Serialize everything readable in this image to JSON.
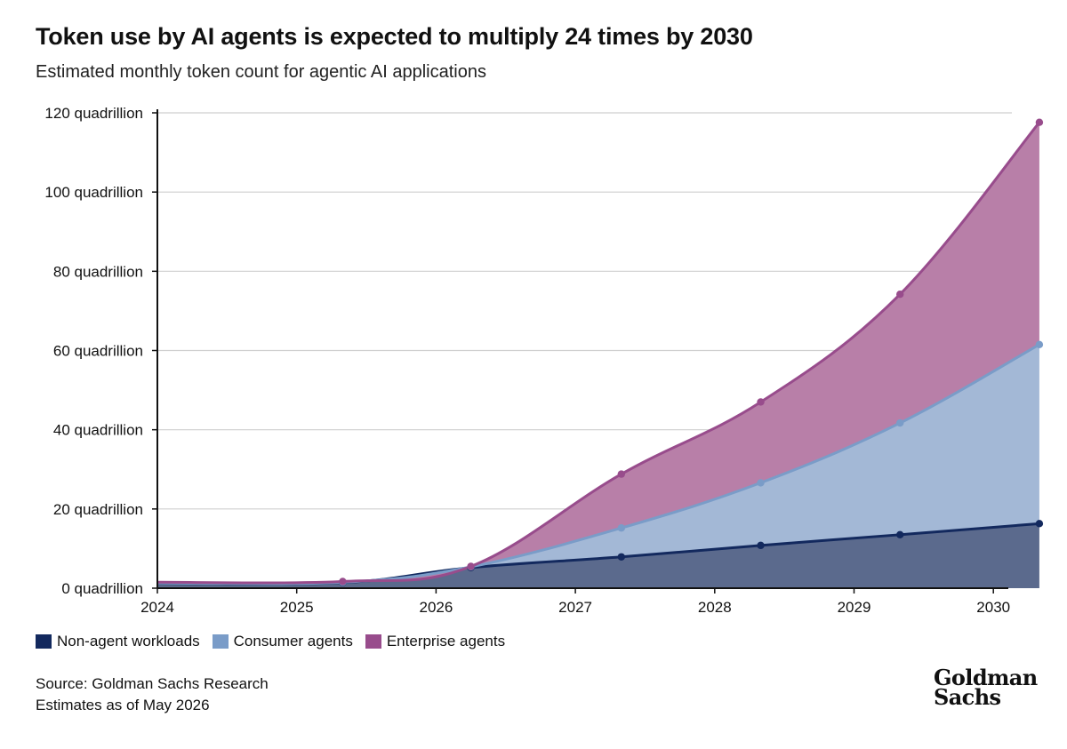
{
  "title": "Token use by AI agents is expected to multiply 24 times by 2030",
  "subtitle": "Estimated monthly token count for agentic AI applications",
  "source": {
    "line1": "Source: Goldman Sachs Research",
    "line2": "Estimates as of May 2026"
  },
  "logo": {
    "line1": "Goldman",
    "line2": "Sachs"
  },
  "colors": {
    "non_agent": "#13295e",
    "consumer": "#7a9cc8",
    "enterprise": "#984c8c"
  },
  "chart_data": {
    "type": "area",
    "stacked": true,
    "x": [
      2024.0,
      2025.33,
      2026.25,
      2027.33,
      2028.33,
      2029.33,
      2030.33
    ],
    "x_ticks": [
      2024,
      2025,
      2026,
      2027,
      2028,
      2029,
      2030
    ],
    "y_ticks": [
      0,
      20,
      40,
      60,
      80,
      100,
      120
    ],
    "y_tick_labels": [
      "0 quadrillion",
      "20 quadrillion",
      "40 quadrillion",
      "60 quadrillion",
      "80 quadrillion",
      "100 quadrillion",
      "120 quadrillion"
    ],
    "ylim": [
      0,
      120
    ],
    "xlim": [
      2024,
      2030.4
    ],
    "grid": true,
    "legend_position": "bottom-left",
    "series": [
      {
        "name": "Non-agent workloads",
        "values": [
          1.2,
          1.4,
          5.2,
          7.9,
          10.8,
          13.5,
          16.3
        ]
      },
      {
        "name": "Consumer agents",
        "values": [
          0.1,
          0.1,
          0.2,
          7.3,
          15.8,
          28.2,
          45.2
        ]
      },
      {
        "name": "Enterprise agents",
        "values": [
          0.2,
          0.2,
          0.1,
          13.6,
          20.4,
          32.5,
          56.1
        ]
      }
    ]
  }
}
